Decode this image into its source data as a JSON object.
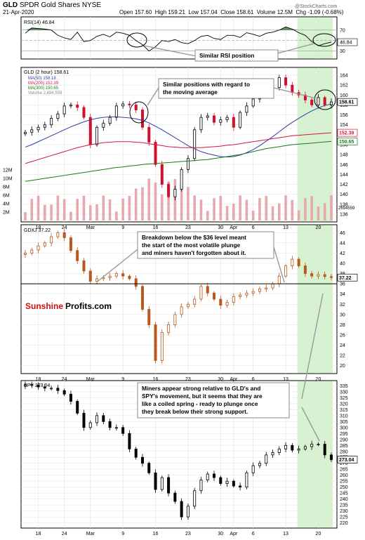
{
  "header": {
    "symbol": "GLD",
    "name": "SPDR Gold Shares",
    "exchange": "NYSE",
    "date": "21-Apr-2020",
    "open_label": "Open",
    "open": "157.60",
    "high_label": "High",
    "high": "159.21",
    "low_label": "Low",
    "low": "157.04",
    "close_label": "Close",
    "close": "158.61",
    "volume_label": "Volume",
    "volume": "12.5M",
    "chg_label": "Chg",
    "chg": "-1.09 (-0.68%)",
    "copyright": "@StockCharts.com"
  },
  "colors": {
    "up": "#000000",
    "down_gld": "#d0102c",
    "gdxj": "#b8581c",
    "spy": "#000000",
    "ma50": "#2a3fa8",
    "ma200": "#d01840",
    "ma300": "#1a7a1a",
    "rsi_fill": "#3a7a3a",
    "highlight": "#c8eec0",
    "volume": "#e8a8b0"
  },
  "x_axis": {
    "ticks": [
      {
        "label": "18",
        "i": 2
      },
      {
        "label": "24",
        "i": 6
      },
      {
        "label": "Mar",
        "i": 10
      },
      {
        "label": "9",
        "i": 15
      },
      {
        "label": "16",
        "i": 20
      },
      {
        "label": "23",
        "i": 25
      },
      {
        "label": "30",
        "i": 30
      },
      {
        "label": "Apr",
        "i": 32
      },
      {
        "label": "6",
        "i": 35
      },
      {
        "label": "13",
        "i": 40
      },
      {
        "label": "20",
        "i": 45
      }
    ]
  },
  "rsi": {
    "legend": "RSI(14) 46.84",
    "value_label": "46.84",
    "ticks": [
      "70",
      "50",
      "30"
    ],
    "annotation": "Similar RSI position"
  },
  "gld": {
    "legend_main": "GLD (2 hour) 158.61",
    "legend_ma50": "MA(50) 158.18",
    "legend_ma200": "MA(200) 152.39",
    "legend_ma300": "MA(300) 150.65",
    "legend_volume": "Volume 2,694,559",
    "price_ticks": [
      "164",
      "162",
      "160",
      "158",
      "156",
      "154",
      "152",
      "150",
      "148",
      "146",
      "144",
      "142",
      "140",
      "138",
      "136"
    ],
    "volume_ticks": [
      "12M",
      "10M",
      "8M",
      "6M",
      "4M",
      "2M"
    ],
    "last_label": "158.61",
    "ma200_label": "152.39",
    "ma300_label": "150.65",
    "vol_label": "2694559",
    "annotation": "Similar positions with regard to\nthe moving average"
  },
  "gdxj": {
    "legend": "GDXJ 37.22",
    "ticks": [
      "46",
      "44",
      "42",
      "40",
      "38",
      "36",
      "34",
      "32",
      "30",
      "28",
      "26",
      "24",
      "22",
      "20"
    ],
    "last_label": "37.22",
    "annotation": "Breakdown below the $36 level meant\nthe start of the most volatile plunge\nand miners haven't forgotten about it.",
    "logo_red": "Sunshine",
    "logo_black": "Profits.com"
  },
  "spy": {
    "legend": "SPY 273.04",
    "ticks": [
      "335",
      "330",
      "325",
      "320",
      "315",
      "310",
      "305",
      "300",
      "295",
      "290",
      "285",
      "280",
      "275",
      "270",
      "265",
      "260",
      "255",
      "250",
      "245",
      "240",
      "235",
      "230",
      "225",
      "220"
    ],
    "last_label": "273.04",
    "annotation": "Miners appear strong relative to GLD's and\nSPY's movement, but it seems that they are\nlike a coiled spring - ready to plunge once\nthey break below their strong support."
  },
  "chart_data": [
    {
      "type": "line",
      "title": "RSI(14) 46.84",
      "ylim": [
        20,
        90
      ],
      "x_index": [
        0,
        1,
        2,
        3,
        4,
        5,
        6,
        7,
        8,
        9,
        10,
        11,
        12,
        13,
        14,
        15,
        16,
        17,
        18,
        19,
        20,
        21,
        22,
        23,
        24,
        25,
        26,
        27,
        28,
        29,
        30,
        31,
        32,
        33,
        34,
        35,
        36,
        37,
        38,
        39,
        40,
        41,
        42,
        43,
        44,
        45,
        46,
        47
      ],
      "values": [
        64,
        74,
        73,
        72,
        70,
        60,
        55,
        52,
        66,
        48,
        50,
        58,
        62,
        57,
        66,
        64,
        60,
        50,
        42,
        30,
        38,
        50,
        48,
        52,
        46,
        44,
        50,
        58,
        60,
        54,
        52,
        60,
        60,
        56,
        65,
        62,
        58,
        64,
        66,
        70,
        76,
        72,
        65,
        60,
        48,
        40,
        44,
        47
      ]
    },
    {
      "type": "candlestick",
      "title": "GLD (2 hour) 158.61",
      "ylim": [
        135,
        165
      ],
      "close": [
        152.5,
        153.0,
        153.5,
        154.0,
        155.3,
        156.2,
        157.8,
        158.0,
        157.5,
        155.5,
        150.0,
        153.5,
        154.3,
        155.5,
        157.8,
        158.2,
        158.0,
        157.0,
        153.5,
        150.5,
        146.0,
        142.0,
        139.5,
        141.0,
        145.0,
        147.2,
        153.0,
        155.5,
        155.8,
        154.5,
        155.0,
        155.5,
        153.5,
        156.5,
        157.8,
        159.2,
        160.0,
        162.0,
        161.5,
        163.5,
        162.0,
        160.5,
        160.0,
        159.0,
        158.0,
        159.5,
        158.0,
        158.61
      ],
      "ma": [
        {
          "name": "MA(50) 158.18",
          "values": [
            149.5,
            150.0,
            150.6,
            151.2,
            151.8,
            152.4,
            153.0,
            153.6,
            154.1,
            154.6,
            155.0,
            155.3,
            155.5,
            155.6,
            155.6,
            155.5,
            155.4,
            155.2,
            154.9,
            154.4,
            153.7,
            153.0,
            152.2,
            151.4,
            150.6,
            149.8,
            149.2,
            148.6,
            148.2,
            147.9,
            147.6,
            147.5,
            147.6,
            147.9,
            148.4,
            149.0,
            149.8,
            150.7,
            151.6,
            152.6,
            153.6,
            154.5,
            155.3,
            156.1,
            156.8,
            157.4,
            157.9,
            158.18
          ]
        },
        {
          "name": "MA(200) 152.39",
          "values": [
            146.2,
            146.6,
            147.0,
            147.4,
            147.8,
            148.2,
            148.6,
            149.0,
            149.4,
            149.7,
            150.0,
            150.2,
            150.4,
            150.5,
            150.6,
            150.6,
            150.6,
            150.5,
            150.4,
            150.2,
            150.0,
            149.8,
            149.6,
            149.5,
            149.4,
            149.4,
            149.4,
            149.4,
            149.5,
            149.6,
            149.7,
            149.9,
            150.0,
            150.2,
            150.4,
            150.6,
            150.8,
            151.0,
            151.2,
            151.4,
            151.6,
            151.8,
            151.9,
            152.0,
            152.1,
            152.2,
            152.3,
            152.39
          ]
        },
        {
          "name": "MA(300) 150.65",
          "values": [
            142.6,
            142.8,
            143.0,
            143.2,
            143.4,
            143.6,
            143.8,
            144.0,
            144.2,
            144.4,
            144.6,
            144.8,
            145.0,
            145.2,
            145.4,
            145.5,
            145.7,
            145.8,
            146.0,
            146.1,
            146.2,
            146.3,
            146.4,
            146.5,
            146.6,
            146.7,
            146.8,
            146.9,
            147.0,
            147.2,
            147.4,
            147.6,
            147.8,
            148.0,
            148.3,
            148.6,
            148.9,
            149.2,
            149.4,
            149.6,
            149.8,
            150.0,
            150.1,
            150.2,
            150.3,
            150.45,
            150.55,
            150.65
          ]
        }
      ],
      "volume_ylim": [
        0,
        13000000
      ]
    },
    {
      "type": "candlestick",
      "title": "GDXJ 37.22",
      "ylim": [
        19,
        47
      ],
      "close": [
        42.0,
        42.6,
        43.4,
        44.0,
        45.2,
        46.0,
        45.0,
        42.5,
        40.5,
        38.5,
        36.5,
        37.0,
        37.2,
        37.5,
        38.0,
        37.5,
        37.0,
        35.5,
        31.0,
        28.0,
        21.0,
        26.5,
        28.0,
        30.0,
        31.5,
        32.0,
        33.0,
        35.5,
        34.2,
        33.0,
        31.8,
        32.4,
        33.5,
        33.8,
        34.2,
        34.5,
        35.0,
        35.2,
        36.0,
        37.5,
        39.5,
        40.8,
        39.5,
        38.0,
        37.5,
        37.8,
        37.4,
        37.22
      ]
    },
    {
      "type": "candlestick",
      "title": "SPY 273.04",
      "ylim": [
        218,
        337
      ],
      "close": [
        336.0,
        335.5,
        334.0,
        333.0,
        333.0,
        331.0,
        328.0,
        322.0,
        312.0,
        300.0,
        304.0,
        310.0,
        305.0,
        300.0,
        300.0,
        295.0,
        282.0,
        275.0,
        270.0,
        262.0,
        248.0,
        258.0,
        245.0,
        238.0,
        225.0,
        234.0,
        247.0,
        256.0,
        261.0,
        258.0,
        253.0,
        255.0,
        251.0,
        250.0,
        262.0,
        268.0,
        270.0,
        277.0,
        279.0,
        282.0,
        285.0,
        281.0,
        282.0,
        284.0,
        286.0,
        286.0,
        277.0,
        273.04
      ]
    }
  ]
}
